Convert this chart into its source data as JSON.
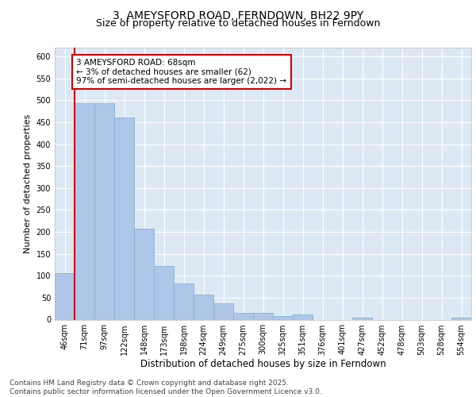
{
  "title": "3, AMEYSFORD ROAD, FERNDOWN, BH22 9PY",
  "subtitle": "Size of property relative to detached houses in Ferndown",
  "xlabel": "Distribution of detached houses by size in Ferndown",
  "ylabel": "Number of detached properties",
  "categories": [
    "46sqm",
    "71sqm",
    "97sqm",
    "122sqm",
    "148sqm",
    "173sqm",
    "198sqm",
    "224sqm",
    "249sqm",
    "275sqm",
    "300sqm",
    "325sqm",
    "351sqm",
    "376sqm",
    "401sqm",
    "427sqm",
    "452sqm",
    "478sqm",
    "503sqm",
    "528sqm",
    "554sqm"
  ],
  "values": [
    105,
    493,
    493,
    460,
    208,
    122,
    83,
    57,
    38,
    15,
    15,
    8,
    12,
    0,
    0,
    5,
    0,
    0,
    0,
    0,
    5
  ],
  "bar_color": "#aec6e8",
  "bar_edge_color": "#7aafd4",
  "highlight_line_color": "#cc0000",
  "annotation_box_text": "3 AMEYSFORD ROAD: 68sqm\n← 3% of detached houses are smaller (62)\n97% of semi-detached houses are larger (2,022) →",
  "annotation_box_edge_color": "#cc0000",
  "annotation_box_bg": "#ffffff",
  "ylim": [
    0,
    620
  ],
  "yticks": [
    0,
    50,
    100,
    150,
    200,
    250,
    300,
    350,
    400,
    450,
    500,
    550,
    600
  ],
  "bg_color": "#dce9f5",
  "footer": "Contains HM Land Registry data © Crown copyright and database right 2025.\nContains public sector information licensed under the Open Government Licence v3.0.",
  "title_fontsize": 10,
  "subtitle_fontsize": 9,
  "xlabel_fontsize": 8.5,
  "ylabel_fontsize": 8,
  "tick_fontsize": 7,
  "footer_fontsize": 6.5,
  "annot_fontsize": 7.5
}
